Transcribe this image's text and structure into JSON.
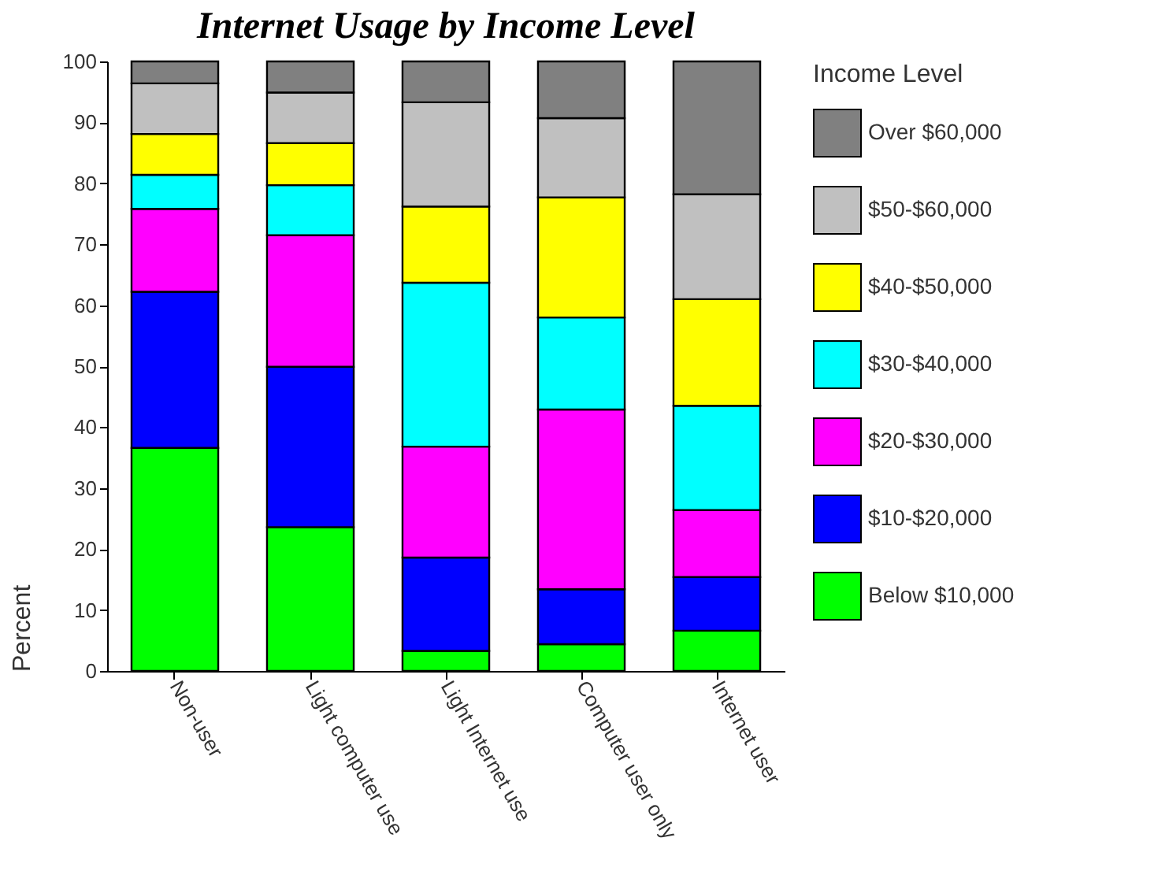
{
  "chart_data": {
    "type": "bar",
    "title": "Internet Usage by Income Level",
    "ylabel": "Percent",
    "legend_title": "Income Level",
    "categories": [
      "Non-user",
      "Light computer use",
      "Light Internet use",
      "Computer user only",
      "Internet user"
    ],
    "stacked": true,
    "ylim": [
      0,
      100
    ],
    "yticks": [
      0,
      10,
      20,
      30,
      40,
      50,
      60,
      70,
      80,
      90,
      100
    ],
    "grid": false,
    "legend": "right",
    "series": [
      {
        "name": "Below $10,000",
        "color": "#00ff00",
        "values": [
          36.6,
          23.6,
          3.3,
          4.4,
          6.6
        ]
      },
      {
        "name": "$10-$20,000",
        "color": "#0000ff",
        "values": [
          25.6,
          26.3,
          15.3,
          9.0,
          8.8
        ]
      },
      {
        "name": "$20-$30,000",
        "color": "#ff00ff",
        "values": [
          13.6,
          21.6,
          18.2,
          29.5,
          11.0
        ]
      },
      {
        "name": "$30-$40,000",
        "color": "#00ffff",
        "values": [
          5.6,
          8.2,
          26.9,
          15.1,
          17.1
        ]
      },
      {
        "name": "$40-$50,000",
        "color": "#ffff00",
        "values": [
          6.7,
          6.9,
          12.5,
          19.7,
          17.5
        ]
      },
      {
        "name": "$50-$60,000",
        "color": "#c0c0c0",
        "values": [
          8.3,
          8.3,
          17.1,
          13.0,
          17.2
        ]
      },
      {
        "name": "Over $60,000",
        "color": "#808080",
        "values": [
          3.6,
          5.1,
          6.7,
          9.3,
          21.8
        ]
      }
    ]
  }
}
